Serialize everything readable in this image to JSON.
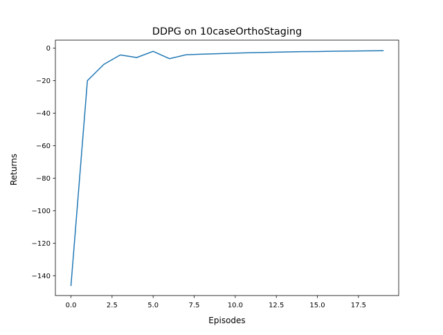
{
  "chart_data": {
    "type": "line",
    "title": "DDPG on 10caseOrthoStaging",
    "xlabel": "Episodes",
    "ylabel": "Returns",
    "xlim": [
      -0.95,
      19.95
    ],
    "ylim": [
      -152.2,
      4.9
    ],
    "grid": false,
    "legend": "none",
    "line_color": "#1f77b4",
    "x_ticks": [
      0,
      2.5,
      5,
      7.5,
      10,
      12.5,
      15,
      17.5
    ],
    "x_tick_labels": [
      "0.0",
      "2.5",
      "5.0",
      "7.5",
      "10.0",
      "12.5",
      "15.0",
      "17.5"
    ],
    "y_ticks": [
      0,
      -20,
      -40,
      -60,
      -80,
      -100,
      -120,
      -140
    ],
    "y_tick_labels": [
      "0",
      "−20",
      "−40",
      "−60",
      "−80",
      "−100",
      "−120",
      "−140"
    ],
    "series": [
      {
        "x": [
          0,
          1,
          2,
          3,
          4,
          5,
          6,
          7,
          8,
          9,
          10,
          11,
          12,
          13,
          14,
          15,
          16,
          17,
          18,
          19
        ],
        "values": [
          -146.0,
          -20.0,
          -10.0,
          -4.2,
          -5.8,
          -2.0,
          -6.5,
          -4.1,
          -3.7,
          -3.4,
          -3.1,
          -2.8,
          -2.6,
          -2.4,
          -2.2,
          -2.1,
          -1.9,
          -1.8,
          -1.7,
          -1.6
        ]
      }
    ]
  }
}
